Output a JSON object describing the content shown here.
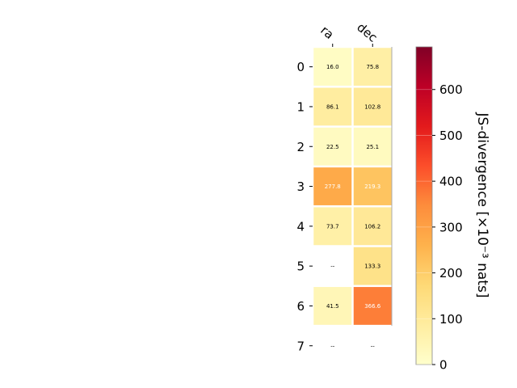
{
  "chart_data": {
    "type": "heatmap",
    "columns": [
      "ra",
      "dec"
    ],
    "rows": [
      "0",
      "1",
      "2",
      "3",
      "4",
      "5",
      "6",
      "7"
    ],
    "cells": [
      [
        {
          "value": 16.0,
          "label": "16.0"
        },
        {
          "value": 75.8,
          "label": "75.8"
        }
      ],
      [
        {
          "value": 86.1,
          "label": "86.1"
        },
        {
          "value": 102.8,
          "label": "102.8"
        }
      ],
      [
        {
          "value": 22.5,
          "label": "22.5"
        },
        {
          "value": 25.1,
          "label": "25.1"
        }
      ],
      [
        {
          "value": 277.8,
          "label": "277.8"
        },
        {
          "value": 219.3,
          "label": "219.3"
        }
      ],
      [
        {
          "value": 73.7,
          "label": "73.7"
        },
        {
          "value": 106.2,
          "label": "106.2"
        }
      ],
      [
        {
          "value": null,
          "label": "--"
        },
        {
          "value": 133.3,
          "label": "133.3"
        }
      ],
      [
        {
          "value": 41.5,
          "label": "41.5"
        },
        {
          "value": 366.6,
          "label": "366.6"
        }
      ],
      [
        {
          "value": null,
          "label": "--"
        },
        {
          "value": null,
          "label": "--"
        }
      ]
    ],
    "colorbar": {
      "label": "JS-divergence [×10⁻³ nats]",
      "min": 0,
      "max": 693,
      "ticks": [
        0,
        100,
        200,
        300,
        400,
        500,
        600
      ],
      "colormap": "YlOrRd"
    },
    "colormap_stops": [
      "#ffffcc",
      "#ffeda0",
      "#fed976",
      "#feb24c",
      "#fd8d3c",
      "#fc4e2a",
      "#e31a1c",
      "#bd0026",
      "#800026"
    ],
    "light_text_threshold": 200,
    "text_colors": {
      "dark": "#000000",
      "light": "#ffffff"
    }
  }
}
